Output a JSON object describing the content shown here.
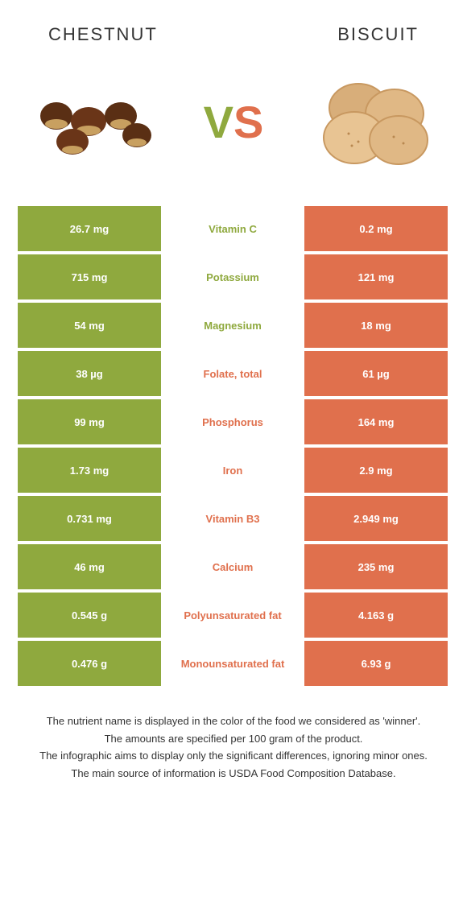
{
  "colors": {
    "left_food": "#8fa93e",
    "right_food": "#e0704d",
    "background": "#ffffff",
    "text": "#333333",
    "cell_text": "#ffffff",
    "chestnut_dark": "#5a2f14",
    "chestnut_light": "#c8a060",
    "biscuit_fill": "#e0b885",
    "biscuit_edge": "#c89860"
  },
  "header": {
    "left_title": "CHESTNUT",
    "right_title": "BISCUIT"
  },
  "vs": {
    "v": "V",
    "s": "S"
  },
  "rows": [
    {
      "name": "Vitamin C",
      "left": "26.7 mg",
      "right": "0.2 mg",
      "winner": "left"
    },
    {
      "name": "Potassium",
      "left": "715 mg",
      "right": "121 mg",
      "winner": "left"
    },
    {
      "name": "Magnesium",
      "left": "54 mg",
      "right": "18 mg",
      "winner": "left"
    },
    {
      "name": "Folate, total",
      "left": "38 µg",
      "right": "61 µg",
      "winner": "right"
    },
    {
      "name": "Phosphorus",
      "left": "99 mg",
      "right": "164 mg",
      "winner": "right"
    },
    {
      "name": "Iron",
      "left": "1.73 mg",
      "right": "2.9 mg",
      "winner": "right"
    },
    {
      "name": "Vitamin B3",
      "left": "0.731 mg",
      "right": "2.949 mg",
      "winner": "right"
    },
    {
      "name": "Calcium",
      "left": "46 mg",
      "right": "235 mg",
      "winner": "right"
    },
    {
      "name": "Polyunsaturated fat",
      "left": "0.545 g",
      "right": "4.163 g",
      "winner": "right"
    },
    {
      "name": "Monounsaturated fat",
      "left": "0.476 g",
      "right": "6.93 g",
      "winner": "right"
    }
  ],
  "footer": {
    "line1": "The nutrient name is displayed in the color of the food we considered as 'winner'.",
    "line2": "The amounts are specified per 100 gram of the product.",
    "line3": "The infographic aims to display only the significant differences, ignoring minor ones.",
    "line4": "The main source of information is USDA Food Composition Database."
  }
}
